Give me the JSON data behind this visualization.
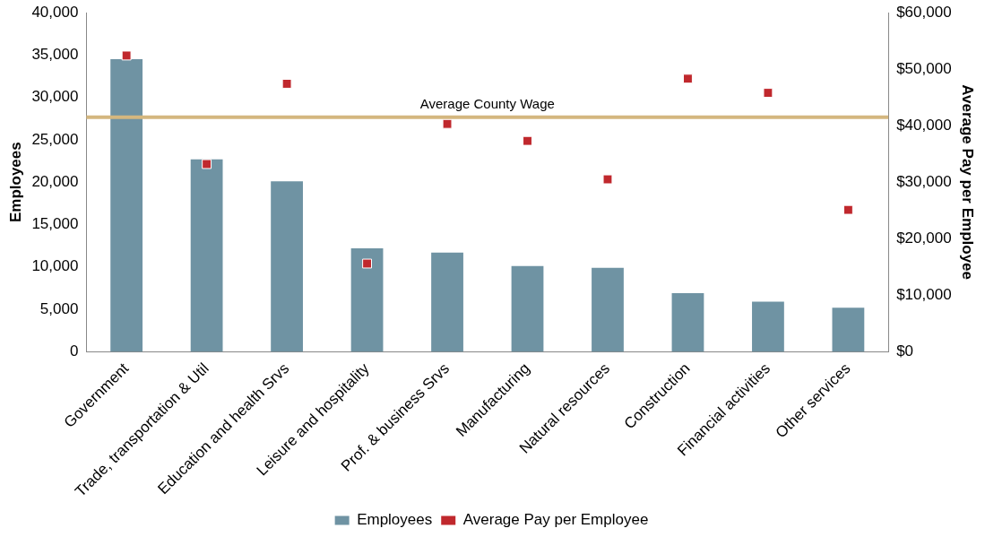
{
  "chart_data": {
    "type": "bar",
    "ylabel": "Employees",
    "y2label": "Average Pay per Employee",
    "categories": [
      "Government",
      "Trade, transportation & Util",
      "Education and health Srvs",
      "Leisure and hospitality",
      "Prof. & business Srvs",
      "Manufacturing",
      "Natural resources",
      "Construction",
      "Financial activities",
      "Other services"
    ],
    "series": [
      {
        "name": "Employees",
        "color": "#6f93a3",
        "values": [
          34500,
          22700,
          20100,
          12200,
          11700,
          10100,
          9900,
          6900,
          5900,
          5200
        ]
      },
      {
        "name": "Average Pay per Employee",
        "type": "scatter",
        "axis": "y2",
        "color": "#c0282d",
        "values": [
          52400,
          33200,
          47400,
          15600,
          40300,
          37300,
          30500,
          48300,
          45800,
          25100
        ]
      }
    ],
    "ylim": [
      0,
      40000
    ],
    "yticks": [
      0,
      {
        "value": 5000,
        "label": "5,000"
      },
      {
        "value": 10000,
        "label": "10,000"
      },
      {
        "value": 15000,
        "label": "15,000"
      },
      {
        "value": 20000,
        "label": "20,000"
      },
      {
        "value": 25000,
        "label": "25,000"
      },
      {
        "value": 30000,
        "label": "30,000"
      },
      {
        "value": 35000,
        "label": "35,000"
      },
      {
        "value": 40000,
        "label": "40,000"
      }
    ],
    "y2lim": [
      0,
      60000
    ],
    "y2ticks": [
      {
        "value": 0,
        "label": "$0"
      },
      {
        "value": 10000,
        "label": "$10,000"
      },
      {
        "value": 20000,
        "label": "$20,000"
      },
      {
        "value": 30000,
        "label": "$30,000"
      },
      {
        "value": 40000,
        "label": "$40,000"
      },
      {
        "value": 50000,
        "label": "$50,000"
      },
      {
        "value": 60000,
        "label": "$60,000"
      }
    ],
    "ref_lines": [
      {
        "axis": "y2",
        "value": 41500,
        "label": "Average County Wage",
        "color": "#d4b77f"
      }
    ],
    "legend": "bottom",
    "marker": "square"
  }
}
